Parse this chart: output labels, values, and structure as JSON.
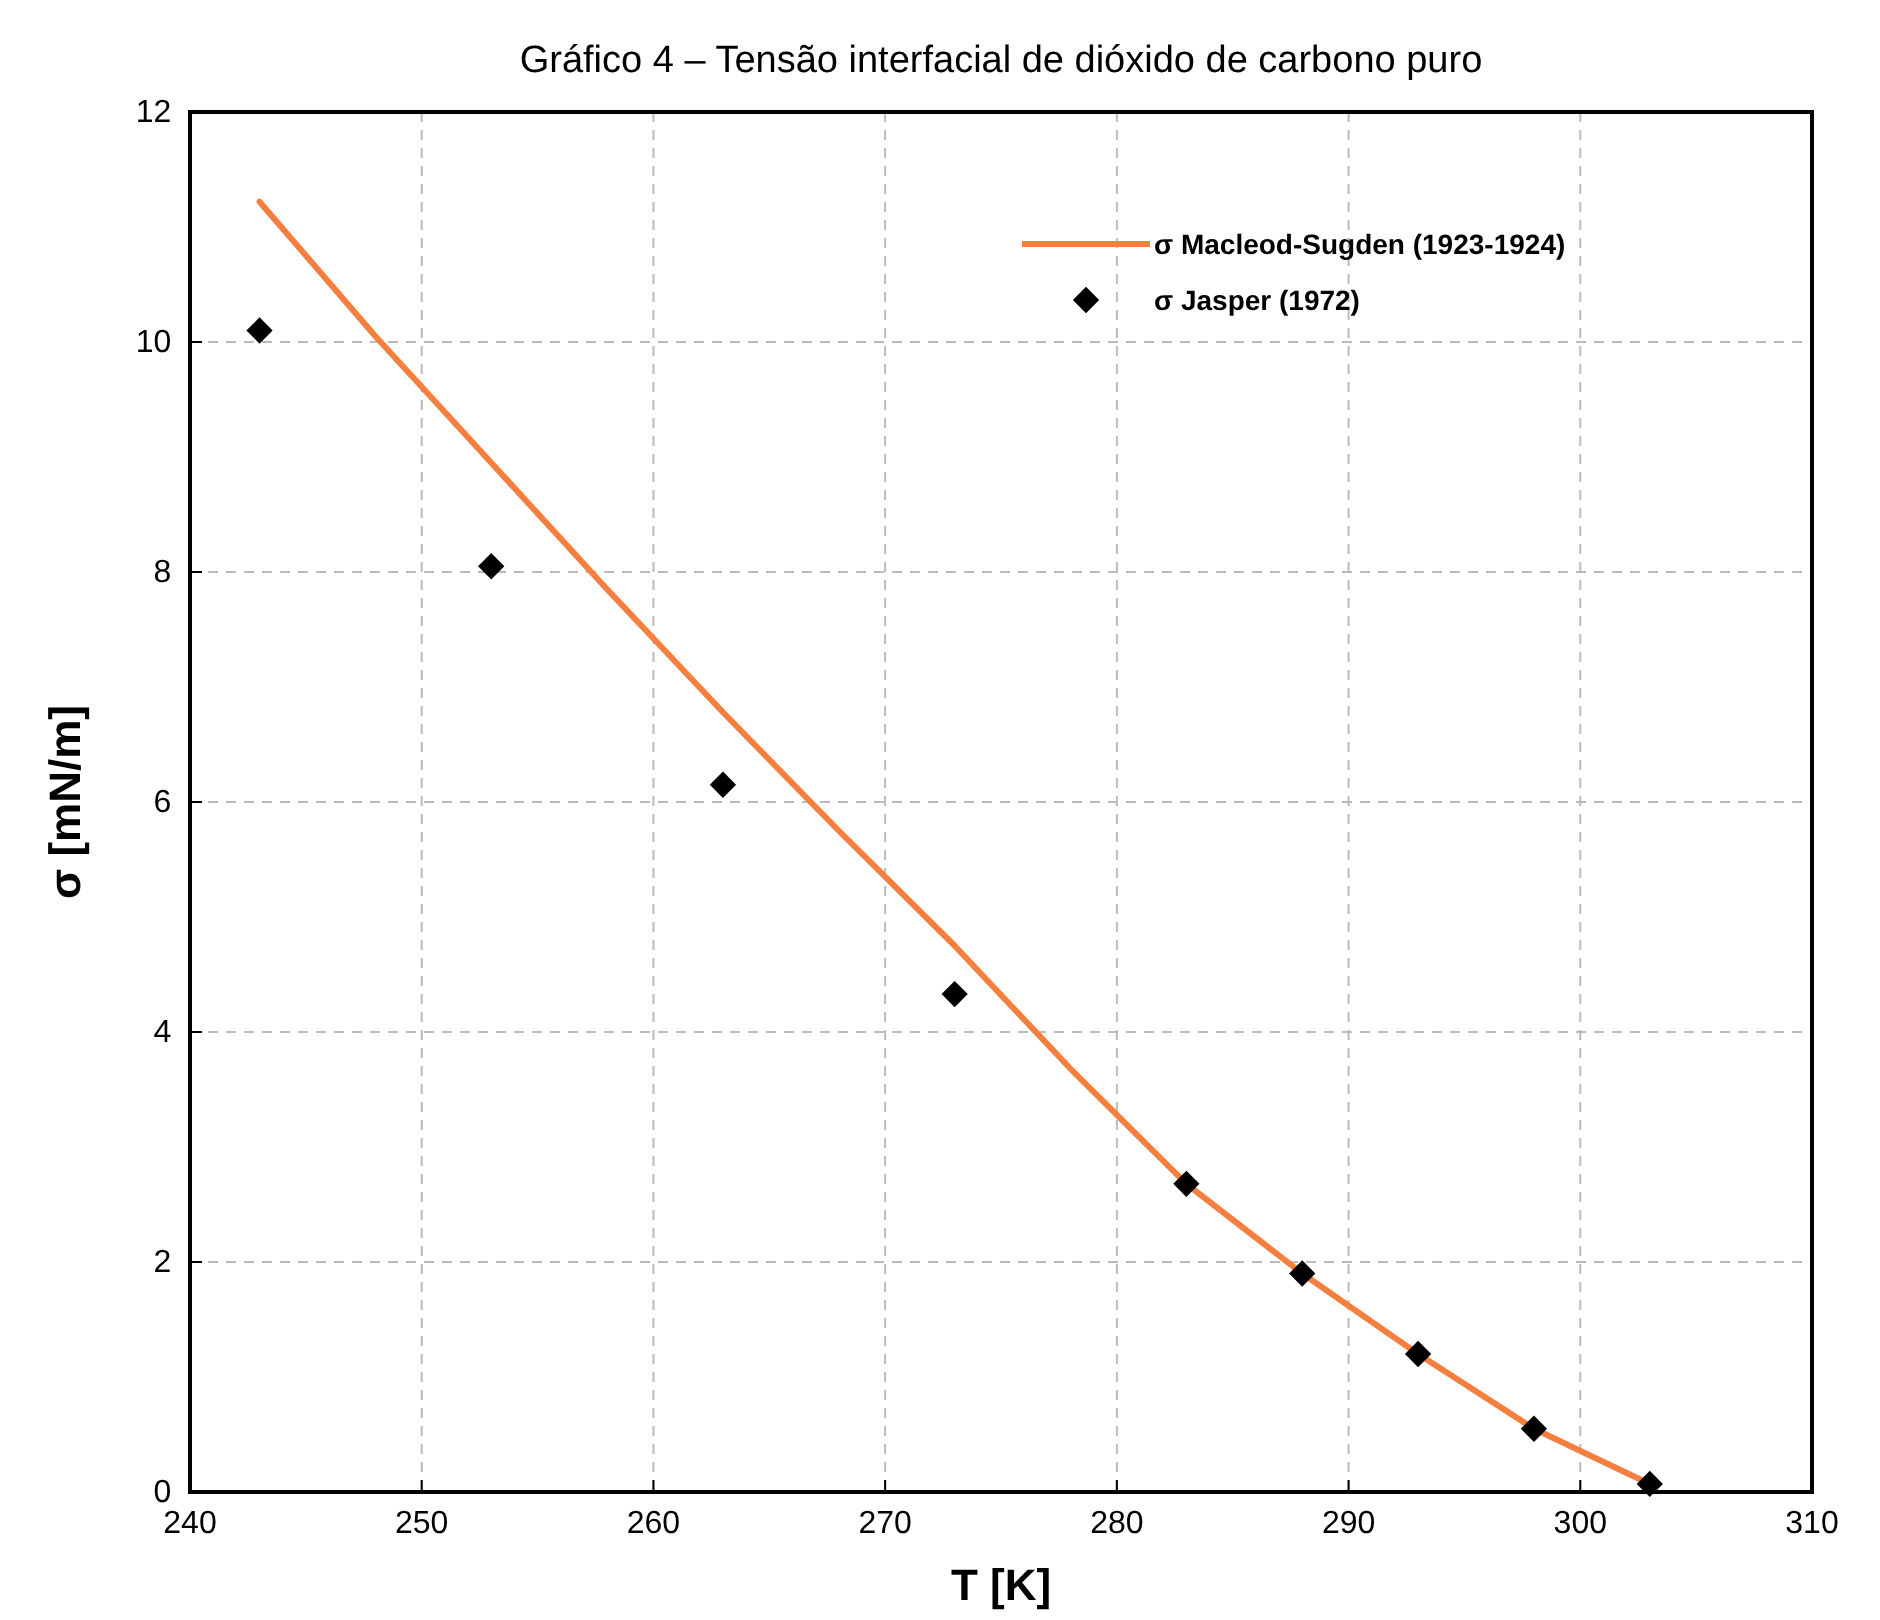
{
  "chart_data": {
    "type": "line",
    "title": "Gráfico 4 – Tensão interfacial de dióxido de carbono puro",
    "xlabel": "T  [K]",
    "ylabel": "σ  [mN/m]",
    "xlim": [
      240,
      310
    ],
    "xticks": [
      240,
      250,
      260,
      270,
      280,
      290,
      300,
      310
    ],
    "ylim": [
      0,
      12
    ],
    "yticks": [
      0,
      2,
      4,
      6,
      8,
      10,
      12
    ],
    "grid": true,
    "legend": "top right",
    "series": [
      {
        "name": "σ Macleod-Sugden (1923-1924)",
        "color": "#f47f3f",
        "marker": "none",
        "x": [
          243,
          248,
          253,
          258,
          263,
          268,
          273,
          278,
          283,
          288,
          293,
          298,
          303
        ],
        "values": [
          11.22,
          10.05,
          8.95,
          7.85,
          6.78,
          5.75,
          4.75,
          3.68,
          2.68,
          1.9,
          1.2,
          0.55,
          0.07
        ]
      },
      {
        "name": "σ Jasper (1972)",
        "type": "scatter",
        "color": "#000000",
        "marker": "diamond",
        "x": [
          243,
          253,
          263,
          273,
          283,
          288,
          293,
          298,
          303
        ],
        "values": [
          10.1,
          8.05,
          6.15,
          4.33,
          2.68,
          1.9,
          1.2,
          0.55,
          0.07
        ]
      }
    ]
  }
}
